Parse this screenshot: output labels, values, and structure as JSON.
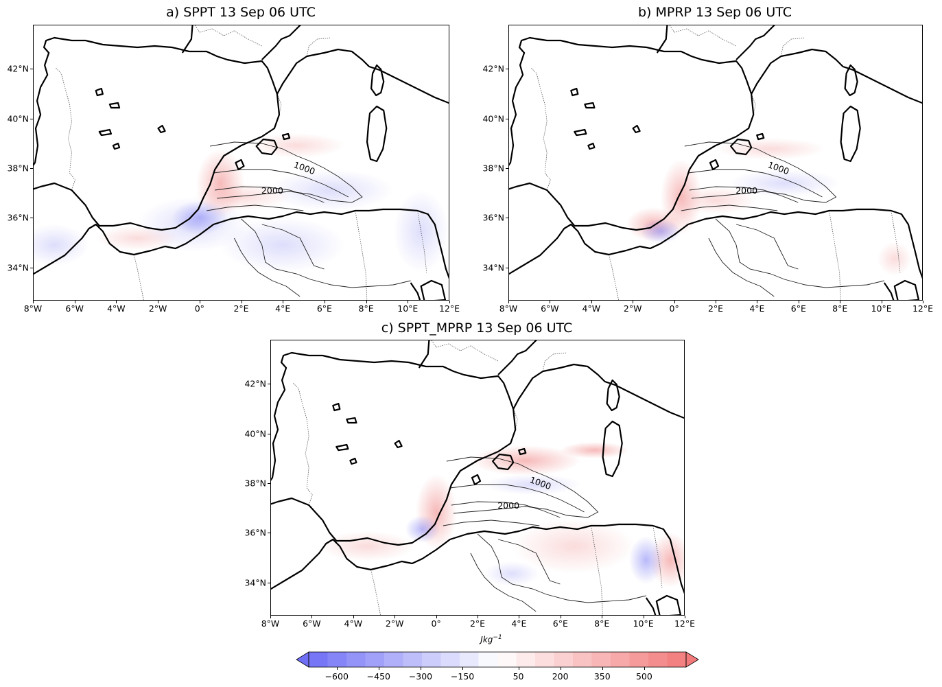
{
  "panels": [
    {
      "id": "a",
      "title": "a) SPPT 13 Sep 06 UTC"
    },
    {
      "id": "b",
      "title": "b) MPRP 13 Sep 06 UTC"
    },
    {
      "id": "c",
      "title": "c) SPPT_MPRP 13 Sep 06 UTC"
    }
  ],
  "lon_ticks": [
    "8°W",
    "6°W",
    "4°W",
    "2°W",
    "0°",
    "2°E",
    "4°E",
    "6°E",
    "8°E",
    "10°E",
    "12°E"
  ],
  "lat_ticks": [
    "42°N",
    "40°N",
    "38°N",
    "36°N",
    "34°N"
  ],
  "contour_labels": [
    "1000",
    "2000"
  ],
  "colorbar": {
    "units": "Jkg",
    "units_exp": "−1",
    "tick_labels": [
      "−600",
      "−450",
      "−300",
      "−150",
      "50",
      "200",
      "350",
      "500"
    ],
    "min_color": "#6f6ff5",
    "mid_color": "#ffffff",
    "max_color": "#f27a7a"
  }
}
